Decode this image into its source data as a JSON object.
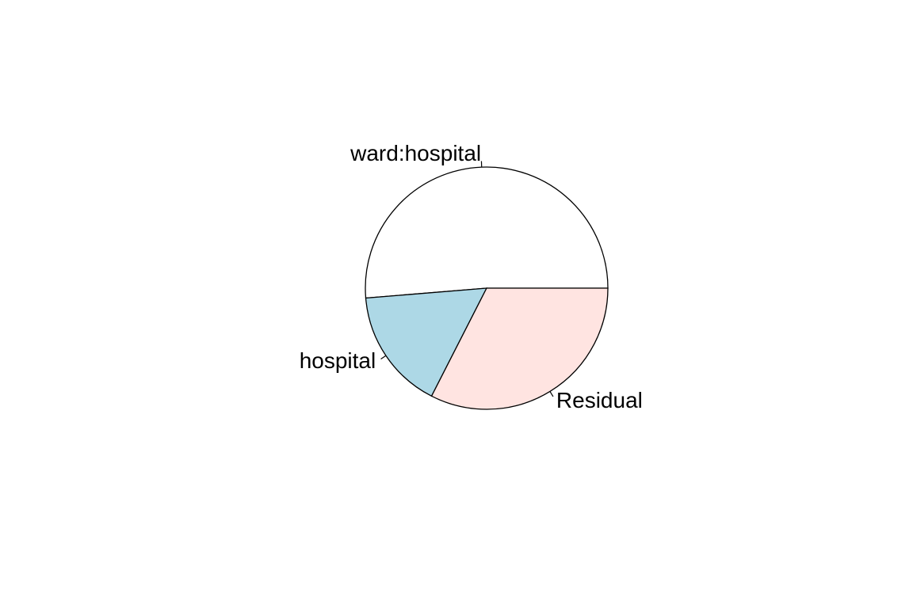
{
  "chart_data": {
    "type": "pie",
    "direction": "counterclockwise",
    "start_angle_deg": 0,
    "slices": [
      {
        "label": "ward:hospital",
        "value": 51.3,
        "color": "#FFFFFF"
      },
      {
        "label": "hospital",
        "value": 16.2,
        "color": "#ADD8E6"
      },
      {
        "label": "Residual",
        "value": 32.5,
        "color": "#FFE4E1"
      }
    ]
  }
}
